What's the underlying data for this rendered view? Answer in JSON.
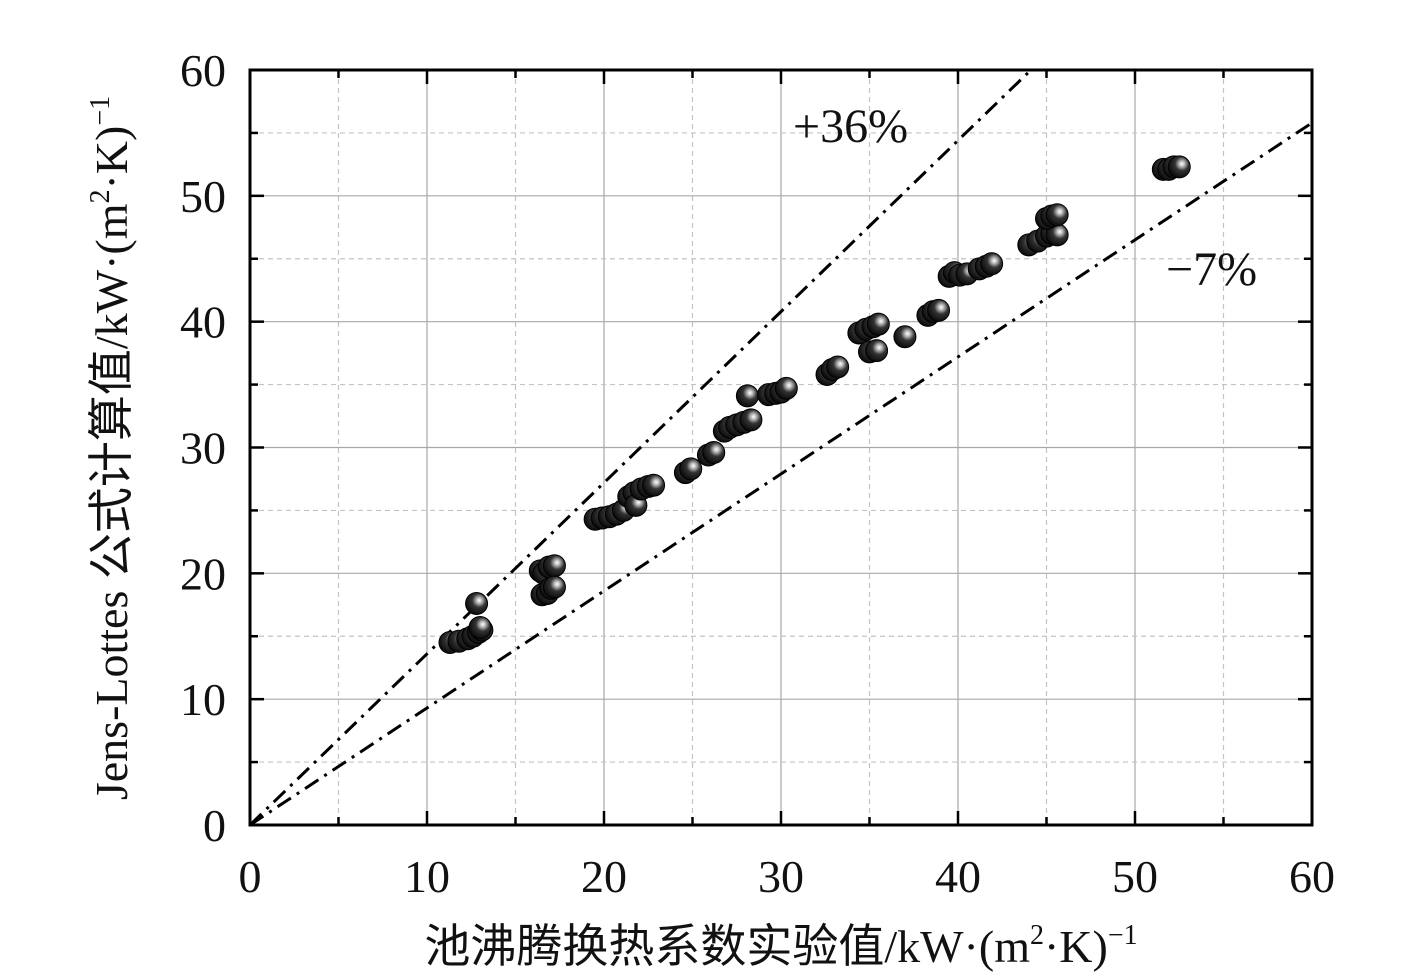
{
  "chart_data": {
    "type": "scatter",
    "title": "",
    "xlabel_main": "池沸腾换热系数实验值/kW·(m",
    "xlabel_sup1": "2",
    "xlabel_mid": "·K)",
    "xlabel_sup2": "−1",
    "ylabel_main": "Jens-Lottes 公式计算值/kW·(m",
    "ylabel_sup1": "2",
    "ylabel_mid": "·K)",
    "ylabel_sup2": "−1",
    "xlim": [
      0,
      60
    ],
    "ylim": [
      0,
      60
    ],
    "xticks": [
      0,
      10,
      20,
      30,
      40,
      50,
      60
    ],
    "yticks": [
      0,
      10,
      20,
      30,
      40,
      50,
      60
    ],
    "xtick_labels": [
      "0",
      "10",
      "20",
      "30",
      "40",
      "50",
      "60"
    ],
    "ytick_labels": [
      "0",
      "10",
      "20",
      "30",
      "40",
      "50",
      "60"
    ],
    "grid": true,
    "reference_lines": [
      {
        "name": "upper-bound",
        "label": "+36%",
        "slope": 1.36
      },
      {
        "name": "lower-bound",
        "label": "−7%",
        "slope": 0.93
      }
    ],
    "annotations": [
      {
        "name": "plus-36-annotation",
        "text": "+36%",
        "x": 30.5,
        "y": 55.5
      },
      {
        "name": "minus-7-annotation",
        "text": "−7%",
        "x": 51.5,
        "y": 44.5
      }
    ],
    "points": [
      [
        11.3,
        14.5
      ],
      [
        11.8,
        14.6
      ],
      [
        12.3,
        14.8
      ],
      [
        12.6,
        15.0
      ],
      [
        12.9,
        15.3
      ],
      [
        13.1,
        15.5
      ],
      [
        13.0,
        15.7
      ],
      [
        12.8,
        17.6
      ],
      [
        16.4,
        20.2
      ],
      [
        16.6,
        20.0
      ],
      [
        16.9,
        20.5
      ],
      [
        17.2,
        20.6
      ],
      [
        16.5,
        18.3
      ],
      [
        16.8,
        18.4
      ],
      [
        17.0,
        18.8
      ],
      [
        17.2,
        18.9
      ],
      [
        19.5,
        24.3
      ],
      [
        19.9,
        24.4
      ],
      [
        20.3,
        24.5
      ],
      [
        20.7,
        24.7
      ],
      [
        21.1,
        25.0
      ],
      [
        21.4,
        26.1
      ],
      [
        21.7,
        26.4
      ],
      [
        21.8,
        25.4
      ],
      [
        22.1,
        26.7
      ],
      [
        22.5,
        26.9
      ],
      [
        22.8,
        27.0
      ],
      [
        24.6,
        28.0
      ],
      [
        24.9,
        28.3
      ],
      [
        25.9,
        29.4
      ],
      [
        26.2,
        29.6
      ],
      [
        26.8,
        31.3
      ],
      [
        27.1,
        31.6
      ],
      [
        27.5,
        31.8
      ],
      [
        27.9,
        32.0
      ],
      [
        28.3,
        32.2
      ],
      [
        28.1,
        34.1
      ],
      [
        29.3,
        34.2
      ],
      [
        29.7,
        34.3
      ],
      [
        30.0,
        34.4
      ],
      [
        30.3,
        34.7
      ],
      [
        32.6,
        35.8
      ],
      [
        32.9,
        36.2
      ],
      [
        33.2,
        36.4
      ],
      [
        34.4,
        39.1
      ],
      [
        34.8,
        39.4
      ],
      [
        35.2,
        39.6
      ],
      [
        35.5,
        39.8
      ],
      [
        35.0,
        37.6
      ],
      [
        35.4,
        37.7
      ],
      [
        37.0,
        38.8
      ],
      [
        38.3,
        40.5
      ],
      [
        38.6,
        40.8
      ],
      [
        38.9,
        40.9
      ],
      [
        39.5,
        43.6
      ],
      [
        39.8,
        43.9
      ],
      [
        40.1,
        43.7
      ],
      [
        40.5,
        43.8
      ],
      [
        41.2,
        44.2
      ],
      [
        41.6,
        44.4
      ],
      [
        41.9,
        44.6
      ],
      [
        44.0,
        46.1
      ],
      [
        44.5,
        46.4
      ],
      [
        45.0,
        46.8
      ],
      [
        45.3,
        47.0
      ],
      [
        45.6,
        46.9
      ],
      [
        45.0,
        48.2
      ],
      [
        45.3,
        48.4
      ],
      [
        45.6,
        48.5
      ],
      [
        51.6,
        52.1
      ],
      [
        51.9,
        52.1
      ],
      [
        52.2,
        52.3
      ],
      [
        52.5,
        52.3
      ]
    ]
  }
}
